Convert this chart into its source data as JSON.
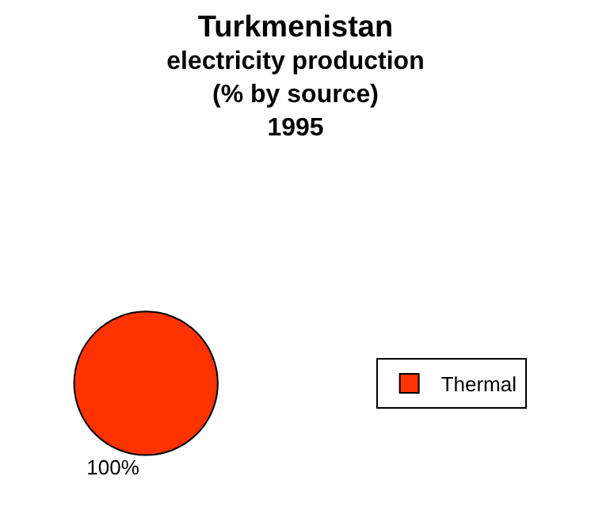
{
  "chart_data": {
    "type": "pie",
    "title": "Turkmenistan\nelectricity production\n(% by source)\n1995",
    "categories": [
      "Thermal"
    ],
    "values": [
      100
    ],
    "colors": [
      "#ff3300"
    ],
    "value_labels": [
      "100%"
    ],
    "legend": "right"
  }
}
